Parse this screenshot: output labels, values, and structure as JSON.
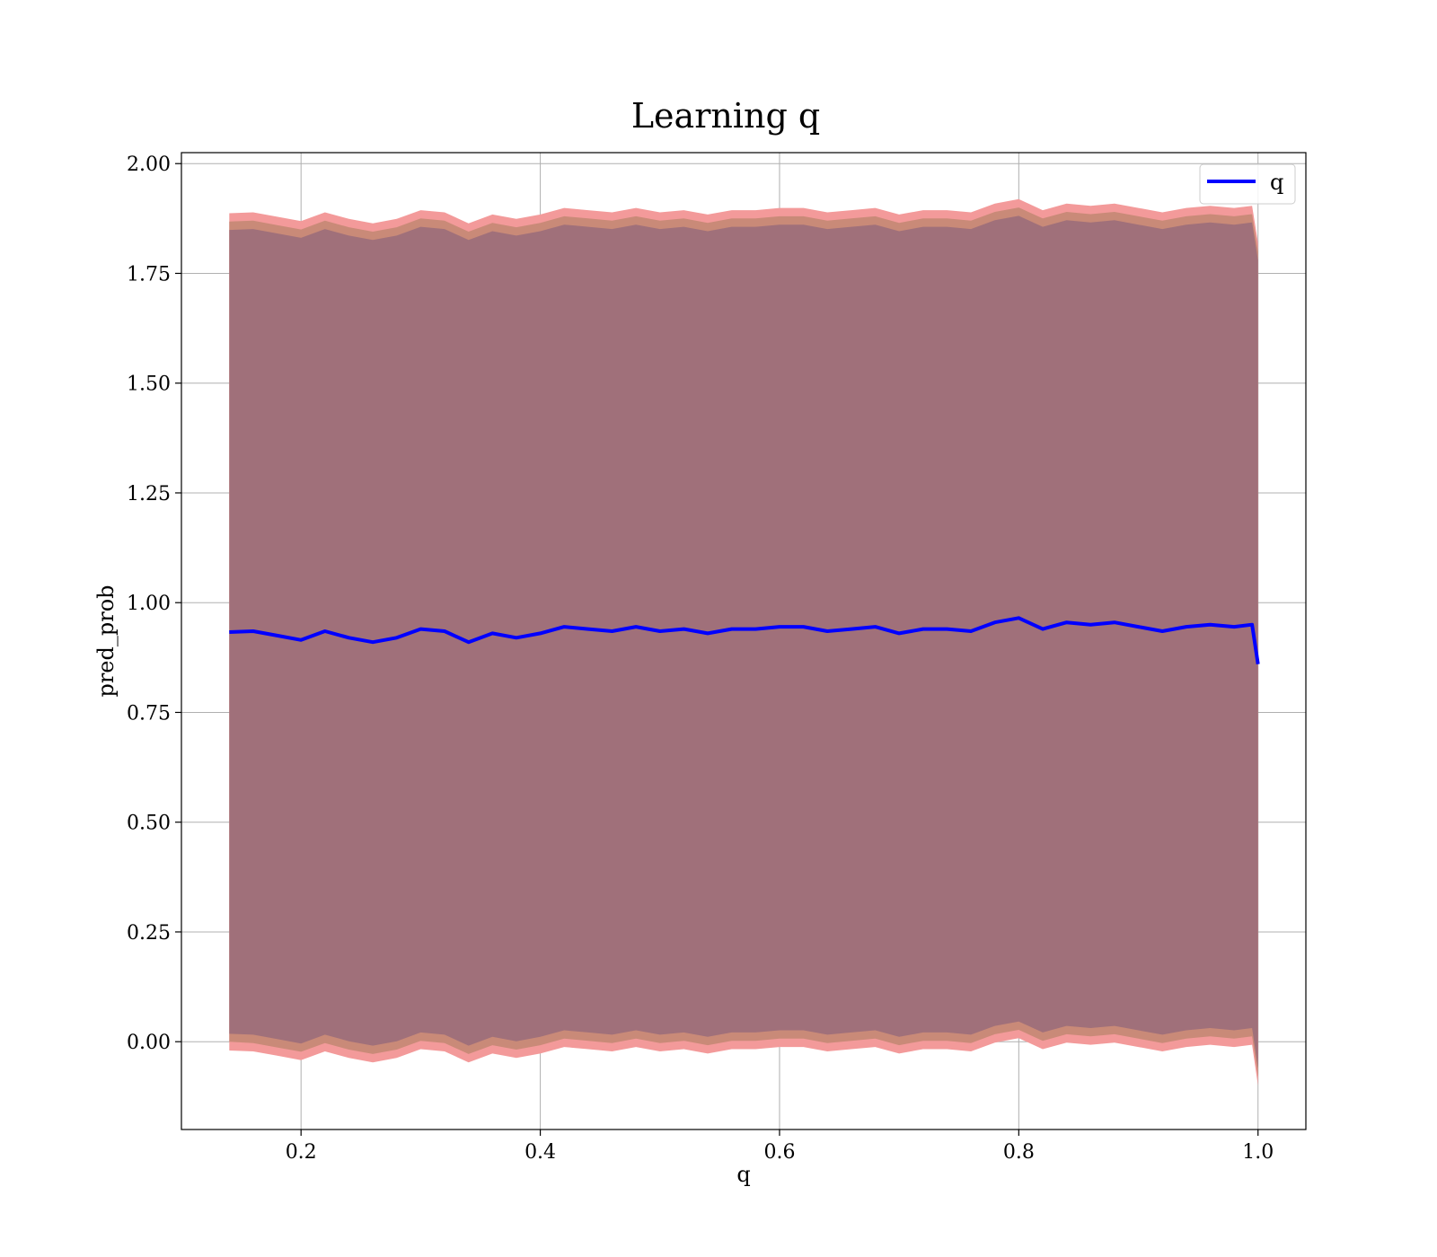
{
  "chart_data": {
    "type": "area",
    "title": "Learning q",
    "xlabel": "q",
    "ylabel": "pred_prob",
    "xlim": [
      0.1,
      1.04
    ],
    "ylim": [
      -0.2,
      2.025
    ],
    "x_ticks": [
      0.2,
      0.4,
      0.6,
      0.8,
      1.0
    ],
    "x_tick_labels": [
      "0.2",
      "0.4",
      "0.6",
      "0.8",
      "1.0"
    ],
    "y_ticks": [
      0.0,
      0.25,
      0.5,
      0.75,
      1.0,
      1.25,
      1.5,
      1.75,
      2.0
    ],
    "y_tick_labels": [
      "0.00",
      "0.25",
      "0.50",
      "0.75",
      "1.00",
      "1.25",
      "1.50",
      "1.75",
      "2.00"
    ],
    "grid": true,
    "legend": {
      "position": "top-right",
      "entries": [
        "q"
      ]
    },
    "colors": {
      "line": "#0000ff",
      "band_outer": "#f39a9a",
      "band_middle": "#c98a78",
      "band_inner": "#a0707a",
      "grid": "#b0b0b0"
    },
    "x": [
      0.14,
      0.16,
      0.18,
      0.2,
      0.22,
      0.24,
      0.26,
      0.28,
      0.3,
      0.32,
      0.34,
      0.36,
      0.38,
      0.4,
      0.42,
      0.44,
      0.46,
      0.48,
      0.5,
      0.52,
      0.54,
      0.56,
      0.58,
      0.6,
      0.62,
      0.64,
      0.66,
      0.68,
      0.7,
      0.72,
      0.74,
      0.76,
      0.78,
      0.8,
      0.82,
      0.84,
      0.86,
      0.88,
      0.9,
      0.92,
      0.94,
      0.96,
      0.98,
      0.995,
      1.0
    ],
    "series": [
      {
        "name": "q",
        "values": [
          0.933,
          0.935,
          0.925,
          0.915,
          0.935,
          0.92,
          0.91,
          0.92,
          0.94,
          0.935,
          0.91,
          0.93,
          0.92,
          0.93,
          0.945,
          0.94,
          0.935,
          0.945,
          0.935,
          0.94,
          0.93,
          0.94,
          0.94,
          0.945,
          0.945,
          0.935,
          0.94,
          0.945,
          0.93,
          0.94,
          0.94,
          0.935,
          0.955,
          0.965,
          0.94,
          0.955,
          0.95,
          0.955,
          0.945,
          0.935,
          0.945,
          0.95,
          0.945,
          0.95,
          0.86
        ]
      },
      {
        "name": "band_outer",
        "lower": [
          -0.02,
          -0.022,
          -0.032,
          -0.042,
          -0.022,
          -0.037,
          -0.047,
          -0.037,
          -0.017,
          -0.022,
          -0.047,
          -0.027,
          -0.037,
          -0.027,
          -0.012,
          -0.017,
          -0.022,
          -0.012,
          -0.022,
          -0.017,
          -0.027,
          -0.017,
          -0.017,
          -0.012,
          -0.012,
          -0.022,
          -0.017,
          -0.012,
          -0.027,
          -0.017,
          -0.017,
          -0.022,
          -0.002,
          0.008,
          -0.017,
          -0.002,
          -0.007,
          -0.002,
          -0.012,
          -0.022,
          -0.012,
          -0.007,
          -0.012,
          -0.007,
          -0.1
        ],
        "upper": [
          1.887,
          1.889,
          1.879,
          1.869,
          1.889,
          1.874,
          1.864,
          1.874,
          1.894,
          1.889,
          1.864,
          1.884,
          1.874,
          1.884,
          1.899,
          1.894,
          1.889,
          1.899,
          1.889,
          1.894,
          1.884,
          1.894,
          1.894,
          1.899,
          1.899,
          1.889,
          1.894,
          1.899,
          1.884,
          1.894,
          1.894,
          1.889,
          1.909,
          1.919,
          1.894,
          1.909,
          1.904,
          1.909,
          1.899,
          1.889,
          1.899,
          1.904,
          1.899,
          1.904,
          1.82
        ]
      },
      {
        "name": "band_middle",
        "lower": [
          0.0,
          -0.003,
          -0.013,
          -0.023,
          -0.003,
          -0.018,
          -0.028,
          -0.018,
          0.002,
          -0.003,
          -0.028,
          -0.008,
          -0.018,
          -0.008,
          0.007,
          0.002,
          -0.003,
          0.007,
          -0.003,
          0.002,
          -0.008,
          0.002,
          0.002,
          0.007,
          0.007,
          -0.003,
          0.002,
          0.007,
          -0.008,
          0.002,
          0.002,
          -0.003,
          0.017,
          0.027,
          0.002,
          0.017,
          0.012,
          0.017,
          0.007,
          -0.003,
          0.007,
          0.012,
          0.007,
          0.012,
          -0.08
        ]
      },
      {
        "name": "band_middle_upper",
        "upper": [
          1.868,
          1.87,
          1.86,
          1.85,
          1.87,
          1.855,
          1.845,
          1.855,
          1.875,
          1.87,
          1.845,
          1.865,
          1.855,
          1.865,
          1.88,
          1.875,
          1.87,
          1.88,
          1.87,
          1.875,
          1.865,
          1.875,
          1.875,
          1.88,
          1.88,
          1.87,
          1.875,
          1.88,
          1.865,
          1.875,
          1.875,
          1.87,
          1.89,
          1.9,
          1.875,
          1.89,
          1.885,
          1.89,
          1.88,
          1.87,
          1.88,
          1.885,
          1.88,
          1.885,
          1.8
        ]
      },
      {
        "name": "band_inner",
        "lower": [
          0.018,
          0.016,
          0.006,
          -0.004,
          0.016,
          0.001,
          -0.009,
          0.001,
          0.021,
          0.016,
          -0.009,
          0.011,
          0.001,
          0.011,
          0.026,
          0.021,
          0.016,
          0.026,
          0.016,
          0.021,
          0.011,
          0.021,
          0.021,
          0.026,
          0.026,
          0.016,
          0.021,
          0.026,
          0.011,
          0.021,
          0.021,
          0.016,
          0.036,
          0.046,
          0.021,
          0.036,
          0.031,
          0.036,
          0.026,
          0.016,
          0.026,
          0.031,
          0.026,
          0.031,
          -0.06
        ],
        "upper": [
          1.849,
          1.851,
          1.841,
          1.831,
          1.851,
          1.836,
          1.826,
          1.836,
          1.856,
          1.851,
          1.826,
          1.846,
          1.836,
          1.846,
          1.861,
          1.856,
          1.851,
          1.861,
          1.851,
          1.856,
          1.846,
          1.856,
          1.856,
          1.861,
          1.861,
          1.851,
          1.856,
          1.861,
          1.846,
          1.856,
          1.856,
          1.851,
          1.871,
          1.881,
          1.856,
          1.871,
          1.866,
          1.871,
          1.861,
          1.851,
          1.861,
          1.866,
          1.861,
          1.866,
          1.78
        ]
      }
    ]
  }
}
